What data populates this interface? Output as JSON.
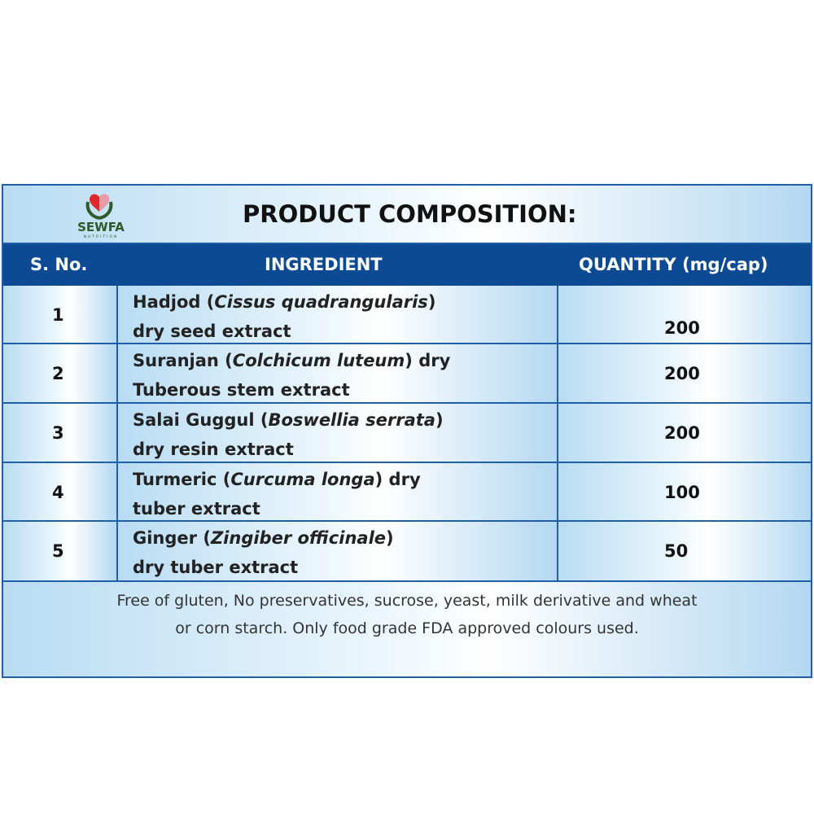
{
  "brand": {
    "name": "SEWFA",
    "sub": "NUTRITION",
    "colors": {
      "leaf": "#2e5a2a",
      "heart": "#e0262b"
    }
  },
  "title": "PRODUCT COMPOSITION:",
  "columns": {
    "sno": "S. No.",
    "ingredient": "INGREDIENT",
    "quantity": "QUANTITY (mg/cap)"
  },
  "rows": [
    {
      "sno": "1",
      "pre": "Hadjod (",
      "latin": "Cissus quadrangularis",
      "post": ")",
      "line2": "dry seed extract",
      "qty": "200"
    },
    {
      "sno": "2",
      "pre": "Suranjan (",
      "latin": "Colchicum luteum",
      "post": ") dry",
      "line2": "Tuberous stem extract",
      "qty": "200"
    },
    {
      "sno": "3",
      "pre": "Salai Guggul (",
      "latin": "Boswellia serrata",
      "post": ")",
      "line2": "dry resin extract",
      "qty": "200"
    },
    {
      "sno": "4",
      "pre": "Turmeric (",
      "latin": "Curcuma longa",
      "post": ") dry",
      "line2": "tuber extract",
      "qty": "100"
    },
    {
      "sno": "5",
      "pre": "Ginger (",
      "latin": "Zingiber officinale",
      "post": ")",
      "line2": "dry tuber extract",
      "qty": "50"
    }
  ],
  "footer": {
    "line1": "Free of gluten, No preservatives, sucrose, yeast, milk derivative and wheat",
    "line2": "or corn starch. Only food grade FDA approved colours used."
  },
  "colors": {
    "header": "#0d4a94",
    "border": "#1f5fa8"
  }
}
